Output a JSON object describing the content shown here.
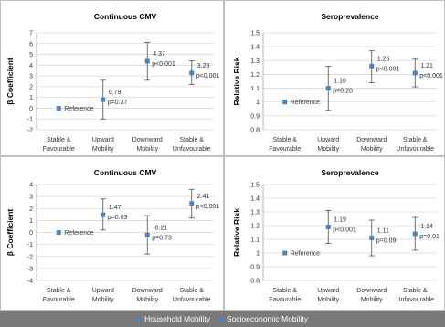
{
  "colors": {
    "point": "#4f81bd",
    "error_bar": "#4d4d4d",
    "grid": "#d9d9d9",
    "legend_bar": "#7a7a7a"
  },
  "legend": {
    "items": [
      {
        "label": "Household Mobility",
        "color": "#4f81bd"
      },
      {
        "label": "Socioeconomic Mobility",
        "color": "#4f81bd"
      }
    ]
  },
  "chart_data": [
    {
      "type": "scatter",
      "title": "Continuous CMV",
      "ylabel": "β Coefficient",
      "xlabel": "",
      "ylim": [
        -2,
        7
      ],
      "yticks": [
        -2,
        -1,
        0,
        1,
        2,
        3,
        4,
        5,
        6,
        7
      ],
      "ytick_labels": [
        "-2",
        "-1",
        "0",
        "1",
        "2",
        "3",
        "4",
        "5",
        "6",
        "7"
      ],
      "categories": [
        [
          "Stable &",
          "Favourable"
        ],
        [
          "Upward",
          "Mobility"
        ],
        [
          "Downward",
          "Mobility"
        ],
        [
          "Stable &",
          "Unfavourable"
        ]
      ],
      "grid": true,
      "series": [
        {
          "name": "Household Mobility",
          "values": [
            0,
            0.79,
            4.37,
            3.28
          ],
          "lower": [
            0,
            -1.0,
            2.6,
            2.2
          ],
          "upper": [
            0,
            2.6,
            6.1,
            4.4
          ],
          "labels": [
            [
              "Reference"
            ],
            [
              "0.79",
              "p=0.37"
            ],
            [
              "4.37",
              "p<0.001"
            ],
            [
              "3.28",
              "p<0.001"
            ]
          ]
        }
      ]
    },
    {
      "type": "scatter",
      "title": "Seroprevalence",
      "ylabel": "Relative Risk",
      "xlabel": "",
      "ylim": [
        0.8,
        1.5
      ],
      "yticks": [
        0.8,
        0.9,
        1.0,
        1.1,
        1.2,
        1.3,
        1.4,
        1.5
      ],
      "ytick_labels": [
        "0.8",
        "0.9",
        "1",
        "1.1",
        "1.2",
        "1.3",
        "1.4",
        "1.5"
      ],
      "categories": [
        [
          "Stable &",
          "Favourable"
        ],
        [
          "Upward",
          "Mobility"
        ],
        [
          "Downward",
          "Mobility"
        ],
        [
          "Stable &",
          "Unfavourable"
        ]
      ],
      "grid": true,
      "series": [
        {
          "name": "Household Mobility",
          "values": [
            1.0,
            1.1,
            1.26,
            1.21
          ],
          "lower": [
            1.0,
            0.94,
            1.14,
            1.11
          ],
          "upper": [
            1.0,
            1.26,
            1.37,
            1.31
          ],
          "labels": [
            [
              "Reference"
            ],
            [
              "1.10",
              "p=0.20"
            ],
            [
              "1.26",
              "p<0.001"
            ],
            [
              "1.21",
              "p<0.001"
            ]
          ]
        }
      ]
    },
    {
      "type": "scatter",
      "title": "Continuous CMV",
      "ylabel": "β Coefficient",
      "xlabel": "",
      "ylim": [
        -4,
        4
      ],
      "yticks": [
        -4,
        -3,
        -2,
        -1,
        0,
        1,
        2,
        3,
        4
      ],
      "ytick_labels": [
        "-4",
        "-3",
        "-2",
        "-1",
        "0",
        "1",
        "2",
        "3",
        "4"
      ],
      "categories": [
        [
          "Stable &",
          "Favourable"
        ],
        [
          "Upward",
          "Mobility"
        ],
        [
          "Downward",
          "Mobility"
        ],
        [
          "Stable &",
          "Unfavourable"
        ]
      ],
      "grid": true,
      "series": [
        {
          "name": "Socioeconomic Mobility",
          "values": [
            0,
            1.47,
            -0.21,
            2.41
          ],
          "lower": [
            0,
            0.2,
            -1.8,
            1.2
          ],
          "upper": [
            0,
            2.8,
            1.4,
            3.6
          ],
          "labels": [
            [
              "Reference"
            ],
            [
              "1.47",
              "p=0.03"
            ],
            [
              "-0.21",
              "p=0.73"
            ],
            [
              "2.41",
              "p<0.001"
            ]
          ]
        }
      ]
    },
    {
      "type": "scatter",
      "title": "Seroprevalence",
      "ylabel": "Relative Risk",
      "xlabel": "",
      "ylim": [
        0.8,
        1.5
      ],
      "yticks": [
        0.8,
        0.9,
        1.0,
        1.1,
        1.2,
        1.3,
        1.4,
        1.5
      ],
      "ytick_labels": [
        "0.8",
        "0.9",
        "1",
        "1.1",
        "1.2",
        "1.3",
        "1.4",
        "1.5"
      ],
      "categories": [
        [
          "Stable &",
          "Favourable"
        ],
        [
          "Upward",
          "Mobility"
        ],
        [
          "Downward",
          "Mobility"
        ],
        [
          "Stable &",
          "Unfavourable"
        ]
      ],
      "grid": true,
      "series": [
        {
          "name": "Socioeconomic Mobility",
          "values": [
            1.0,
            1.19,
            1.11,
            1.14
          ],
          "lower": [
            1.0,
            1.07,
            0.98,
            1.02
          ],
          "upper": [
            1.0,
            1.31,
            1.24,
            1.26
          ],
          "labels": [
            [
              "Reference"
            ],
            [
              "1.19",
              "p<0.001"
            ],
            [
              "1.11",
              "p=0.09"
            ],
            [
              "1.14",
              "p=0.01"
            ]
          ]
        }
      ]
    }
  ]
}
